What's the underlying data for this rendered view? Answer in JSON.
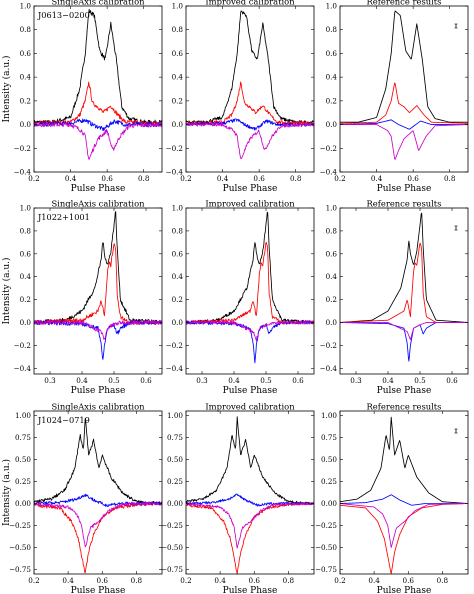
{
  "rows": [
    {
      "pulsar": "J0613−0200",
      "xlabel": "Pulse Phase",
      "ylabel": "Intensity (a.u.)",
      "xlim": [
        0.2,
        0.9
      ],
      "ylim": [
        -0.4,
        1.0
      ],
      "xticks": [
        "0.2",
        "0.4",
        "0.6",
        "0.8"
      ],
      "xtick_values": [
        0.2,
        0.4,
        0.6,
        0.8
      ],
      "yticks": [
        "1.0",
        "0.8",
        "0.6",
        "0.4",
        "0.2",
        "0.0",
        "−0.2",
        "−0.4"
      ],
      "ytick_values": [
        1.0,
        0.8,
        0.6,
        0.4,
        0.2,
        0.0,
        -0.2,
        -0.4
      ]
    },
    {
      "pulsar": "J1022+1001",
      "xlabel": "Pulse Phase",
      "ylabel": "Intensity (a.u.)",
      "xlim": [
        0.25,
        0.65
      ],
      "ylim": [
        -0.45,
        1.0
      ],
      "xticks": [
        "0.3",
        "0.4",
        "0.5",
        "0.6"
      ],
      "xtick_values": [
        0.3,
        0.4,
        0.5,
        0.6
      ],
      "yticks": [
        "1.0",
        "0.8",
        "0.6",
        "0.4",
        "0.2",
        "0.0",
        "−0.2",
        "−0.4"
      ],
      "ytick_values": [
        1.0,
        0.8,
        0.6,
        0.4,
        0.2,
        0.0,
        -0.2,
        -0.4
      ]
    },
    {
      "pulsar": "J1024−0719",
      "xlabel": "Pulse Phase",
      "ylabel": "Intensity (a.u.)",
      "xlim": [
        0.2,
        0.95
      ],
      "ylim": [
        -0.8,
        1.05
      ],
      "xticks": [
        "0.2",
        "0.4",
        "0.6",
        "0.8"
      ],
      "xtick_values": [
        0.2,
        0.4,
        0.6,
        0.8
      ],
      "yticks": [
        "1.00",
        "0.75",
        "0.50",
        "0.25",
        "0.00",
        "−0.25",
        "−0.50",
        "−0.75"
      ],
      "ytick_values": [
        1.0,
        0.75,
        0.5,
        0.25,
        0.0,
        -0.25,
        -0.5,
        -0.75
      ]
    }
  ],
  "columns": [
    {
      "title": "SingleAxis calibration"
    },
    {
      "title": "Improved calibration"
    },
    {
      "title": "Reference results"
    }
  ],
  "chart_data": {
    "type": "line",
    "x_quantity": "Pulse Phase",
    "y_quantity": "Intensity (a.u.)",
    "series_colors": {
      "total_intensity": "#000000",
      "linear_polarization": "#ff0000",
      "circular_polarization": "#0000ff",
      "position_angle_component": "#cc00cc"
    },
    "note_noise": "SingleAxis and Improved panels show visibly noisier traces than Reference results",
    "panels": [
      {
        "pulsar": "J0613−0200",
        "black": {
          "x": [
            0.2,
            0.3,
            0.4,
            0.45,
            0.48,
            0.5,
            0.53,
            0.56,
            0.59,
            0.62,
            0.65,
            0.68,
            0.72,
            0.8,
            0.9
          ],
          "y": [
            0.02,
            0.02,
            0.06,
            0.3,
            0.6,
            0.96,
            0.92,
            0.62,
            0.55,
            0.85,
            0.55,
            0.15,
            0.05,
            0.02,
            0.02
          ]
        },
        "red": {
          "x": [
            0.2,
            0.4,
            0.45,
            0.48,
            0.5,
            0.52,
            0.55,
            0.58,
            0.62,
            0.66,
            0.7,
            0.9
          ],
          "y": [
            0.01,
            0.02,
            0.08,
            0.2,
            0.36,
            0.18,
            0.15,
            0.1,
            0.16,
            0.08,
            0.02,
            0.01
          ]
        },
        "blue": {
          "x": [
            0.2,
            0.4,
            0.48,
            0.52,
            0.58,
            0.64,
            0.7,
            0.9
          ],
          "y": [
            0.0,
            0.01,
            0.04,
            0.0,
            -0.04,
            0.03,
            0.0,
            0.0
          ]
        },
        "magenta": {
          "x": [
            0.2,
            0.4,
            0.46,
            0.48,
            0.5,
            0.52,
            0.55,
            0.6,
            0.63,
            0.67,
            0.72,
            0.9
          ],
          "y": [
            0.0,
            0.0,
            -0.05,
            -0.1,
            -0.3,
            -0.22,
            -0.12,
            -0.05,
            -0.22,
            -0.1,
            -0.01,
            0.0
          ]
        }
      },
      {
        "pulsar": "J1022+1001",
        "black": {
          "x": [
            0.25,
            0.35,
            0.4,
            0.44,
            0.46,
            0.465,
            0.47,
            0.48,
            0.49,
            0.5,
            0.505,
            0.51,
            0.52,
            0.55,
            0.65
          ],
          "y": [
            0.0,
            0.02,
            0.1,
            0.3,
            0.55,
            0.72,
            0.6,
            0.5,
            0.62,
            0.85,
            0.98,
            0.65,
            0.2,
            0.02,
            0.0
          ]
        },
        "red": {
          "x": [
            0.25,
            0.4,
            0.45,
            0.46,
            0.47,
            0.48,
            0.485,
            0.49,
            0.5,
            0.505,
            0.51,
            0.52,
            0.55,
            0.65
          ],
          "y": [
            0.0,
            0.02,
            0.1,
            0.2,
            0.05,
            0.45,
            0.52,
            0.5,
            0.7,
            0.65,
            0.25,
            0.05,
            0.0,
            0.0
          ]
        },
        "blue": {
          "x": [
            0.25,
            0.4,
            0.45,
            0.46,
            0.465,
            0.47,
            0.48,
            0.5,
            0.51,
            0.52,
            0.55,
            0.65
          ],
          "y": [
            0.0,
            -0.01,
            -0.05,
            -0.18,
            -0.35,
            -0.2,
            -0.05,
            -0.02,
            -0.1,
            -0.05,
            0.0,
            0.0
          ]
        },
        "magenta": {
          "x": [
            0.25,
            0.4,
            0.46,
            0.47,
            0.48,
            0.5,
            0.52,
            0.65
          ],
          "y": [
            0.0,
            0.0,
            -0.08,
            -0.15,
            -0.05,
            -0.02,
            0.0,
            0.0
          ]
        }
      },
      {
        "pulsar": "J1024−0719",
        "black": {
          "x": [
            0.2,
            0.3,
            0.38,
            0.44,
            0.47,
            0.49,
            0.5,
            0.52,
            0.55,
            0.58,
            0.6,
            0.65,
            0.72,
            0.8,
            0.95
          ],
          "y": [
            0.02,
            0.05,
            0.15,
            0.4,
            0.78,
            0.6,
            0.98,
            0.55,
            0.72,
            0.4,
            0.55,
            0.3,
            0.12,
            0.02,
            0.0
          ]
        },
        "red": {
          "x": [
            0.2,
            0.35,
            0.42,
            0.46,
            0.48,
            0.5,
            0.52,
            0.55,
            0.6,
            0.68,
            0.8,
            0.95
          ],
          "y": [
            -0.02,
            -0.05,
            -0.2,
            -0.4,
            -0.6,
            -0.8,
            -0.55,
            -0.35,
            -0.15,
            -0.05,
            -0.01,
            0.0
          ]
        },
        "blue": {
          "x": [
            0.2,
            0.35,
            0.45,
            0.5,
            0.55,
            0.62,
            0.7,
            0.95
          ],
          "y": [
            0.0,
            0.01,
            0.05,
            0.1,
            0.04,
            -0.02,
            0.0,
            0.0
          ]
        },
        "magenta": {
          "x": [
            0.2,
            0.4,
            0.45,
            0.48,
            0.5,
            0.53,
            0.58,
            0.64,
            0.72,
            0.95
          ],
          "y": [
            0.0,
            -0.04,
            -0.12,
            -0.25,
            -0.5,
            -0.28,
            -0.2,
            -0.08,
            -0.01,
            0.0
          ]
        }
      }
    ]
  }
}
